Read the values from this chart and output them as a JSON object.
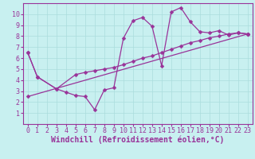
{
  "xlabel": "Windchill (Refroidissement éolien,°C)",
  "bg_color": "#c8f0f0",
  "line_color": "#993399",
  "xlim": [
    -0.5,
    23.5
  ],
  "ylim": [
    0,
    11
  ],
  "xticks": [
    0,
    1,
    2,
    3,
    4,
    5,
    6,
    7,
    8,
    9,
    10,
    11,
    12,
    13,
    14,
    15,
    16,
    17,
    18,
    19,
    20,
    21,
    22,
    23
  ],
  "yticks": [
    1,
    2,
    3,
    4,
    5,
    6,
    7,
    8,
    9,
    10
  ],
  "curve1_x": [
    0,
    1,
    3,
    4,
    5,
    6,
    7,
    8,
    9,
    10,
    11,
    12,
    13,
    14,
    15,
    16,
    17,
    18,
    19,
    20,
    21,
    22,
    23
  ],
  "curve1_y": [
    6.5,
    4.3,
    3.2,
    2.9,
    2.6,
    2.5,
    1.3,
    3.1,
    3.3,
    7.8,
    9.4,
    9.7,
    8.9,
    5.3,
    10.2,
    10.6,
    9.3,
    8.4,
    8.3,
    8.5,
    8.1,
    8.3,
    8.2
  ],
  "curve2_x": [
    0,
    1,
    3,
    5,
    6,
    7,
    8,
    9,
    10,
    11,
    12,
    13,
    14,
    15,
    16,
    17,
    18,
    19,
    20,
    21,
    22,
    23
  ],
  "curve2_y": [
    6.5,
    4.3,
    3.2,
    4.5,
    4.7,
    4.85,
    5.0,
    5.15,
    5.4,
    5.7,
    6.0,
    6.2,
    6.5,
    6.8,
    7.1,
    7.4,
    7.6,
    7.85,
    8.0,
    8.2,
    8.3,
    8.2
  ],
  "curve3_x": [
    0,
    23
  ],
  "curve3_y": [
    2.5,
    8.2
  ],
  "grid_color": "#aadddd",
  "tick_fontsize": 6,
  "xlabel_fontsize": 7
}
